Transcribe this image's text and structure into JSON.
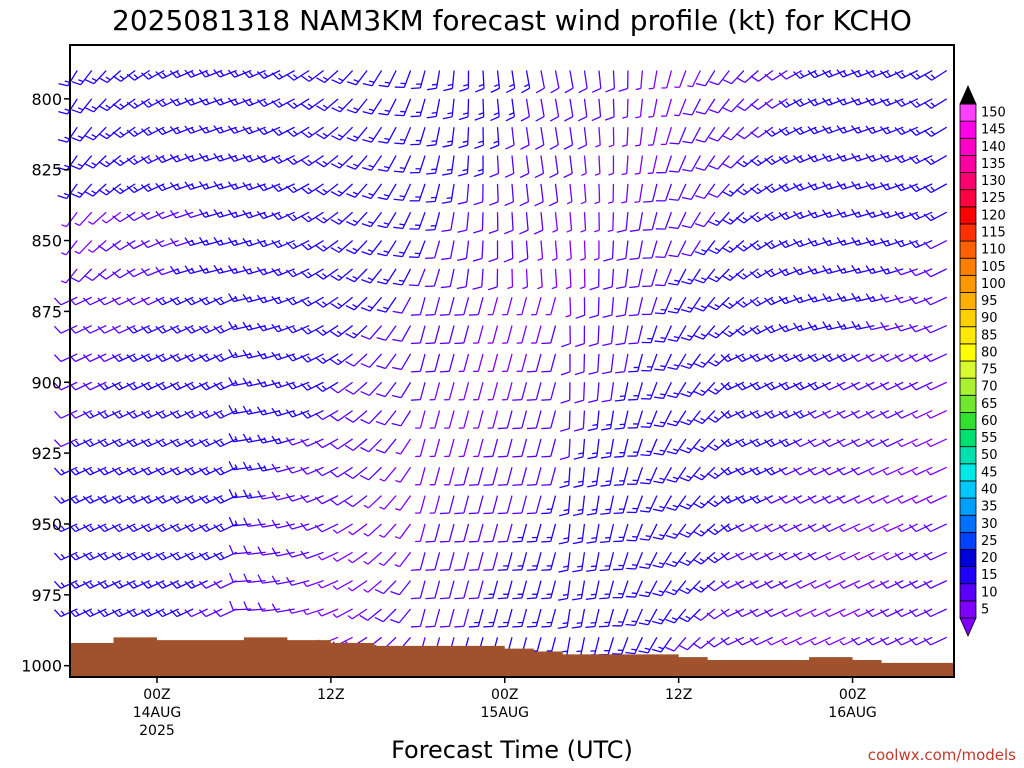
{
  "title": "2025081318 NAM3KM forecast wind profile (kt) for KCHO",
  "xlabel": "Forecast Time (UTC)",
  "credit": "coolwx.com/models",
  "chart_data": {
    "type": "wind-barb-profile",
    "title": "2025081318 NAM3KM forecast wind profile (kt) for KCHO",
    "xlabel": "Forecast Time (UTC)",
    "ylabel": "",
    "y_axis": {
      "ticks": [
        800,
        825,
        850,
        875,
        900,
        925,
        950,
        975,
        1000
      ],
      "range": [
        781,
        1004
      ],
      "direction": "pressure decreasing upward"
    },
    "x_axis": {
      "range_hours": [
        0,
        61
      ],
      "ticks": [
        {
          "hour": 6,
          "label": "00Z",
          "sub1": "14AUG",
          "sub2": "2025"
        },
        {
          "hour": 18,
          "label": "12Z",
          "sub1": "",
          "sub2": ""
        },
        {
          "hour": 30,
          "label": "00Z",
          "sub1": "15AUG",
          "sub2": ""
        },
        {
          "hour": 42,
          "label": "12Z",
          "sub1": "",
          "sub2": ""
        },
        {
          "hour": 54,
          "label": "00Z",
          "sub1": "16AUG",
          "sub2": ""
        }
      ]
    },
    "colorbar": {
      "levels": [
        5,
        10,
        15,
        20,
        25,
        30,
        35,
        40,
        45,
        50,
        55,
        60,
        65,
        70,
        75,
        80,
        85,
        90,
        95,
        100,
        105,
        110,
        115,
        120,
        125,
        130,
        135,
        140,
        145,
        150
      ],
      "colors": [
        "#8000ff",
        "#5a00ff",
        "#2000ff",
        "#0000d8",
        "#0040ff",
        "#0070ff",
        "#00a0ff",
        "#00c8ff",
        "#00e8e8",
        "#00e0b0",
        "#00e070",
        "#30e030",
        "#70e830",
        "#a8f030",
        "#d8f830",
        "#ffff00",
        "#ffe800",
        "#ffd000",
        "#ffb000",
        "#ff9800",
        "#ff8000",
        "#ff6000",
        "#ff3000",
        "#ff0000",
        "#ff0040",
        "#ff0070",
        "#ff00a0",
        "#ff00c8",
        "#ff00e8",
        "#ff40ff"
      ],
      "arrow_bottom_color": "#8000ff",
      "arrow_top_color": "#000000"
    },
    "barb_grid": {
      "time_step_hours": 1,
      "levels_mb": [
        790,
        800,
        810,
        820,
        830,
        840,
        850,
        860,
        870,
        880,
        890,
        900,
        910,
        920,
        930,
        940,
        950,
        960,
        970,
        980,
        990
      ]
    },
    "wind_series": [
      {
        "name": "850-1000 mb, 00Z 14AUG",
        "dir_deg": 240,
        "speed_kt": 10
      },
      {
        "name": "850-1000 mb, 00Z 15AUG",
        "dir_deg": 200,
        "speed_kt": 5
      },
      {
        "name": "900-1000 mb, 00Z 16AUG",
        "dir_deg": 240,
        "speed_kt": 15
      },
      {
        "name": "800 mb, 15AUG",
        "dir_deg": 195,
        "speed_kt": 5
      }
    ],
    "terrain": {
      "surface_pressure_mb": [
        {
          "hour": 0,
          "p": 992
        },
        {
          "hour": 3,
          "p": 990
        },
        {
          "hour": 6,
          "p": 991
        },
        {
          "hour": 9,
          "p": 991
        },
        {
          "hour": 12,
          "p": 990
        },
        {
          "hour": 15,
          "p": 991
        },
        {
          "hour": 18,
          "p": 992
        },
        {
          "hour": 21,
          "p": 993
        },
        {
          "hour": 27,
          "p": 993
        },
        {
          "hour": 30,
          "p": 994
        },
        {
          "hour": 32,
          "p": 995
        },
        {
          "hour": 34,
          "p": 996
        },
        {
          "hour": 39,
          "p": 996
        },
        {
          "hour": 42,
          "p": 997
        },
        {
          "hour": 44,
          "p": 998
        },
        {
          "hour": 48,
          "p": 998
        },
        {
          "hour": 51,
          "p": 997
        },
        {
          "hour": 54,
          "p": 998
        },
        {
          "hour": 56,
          "p": 999
        },
        {
          "hour": 60,
          "p": 999
        },
        {
          "hour": 61,
          "p": 998
        }
      ],
      "color": "#a0522d"
    }
  }
}
